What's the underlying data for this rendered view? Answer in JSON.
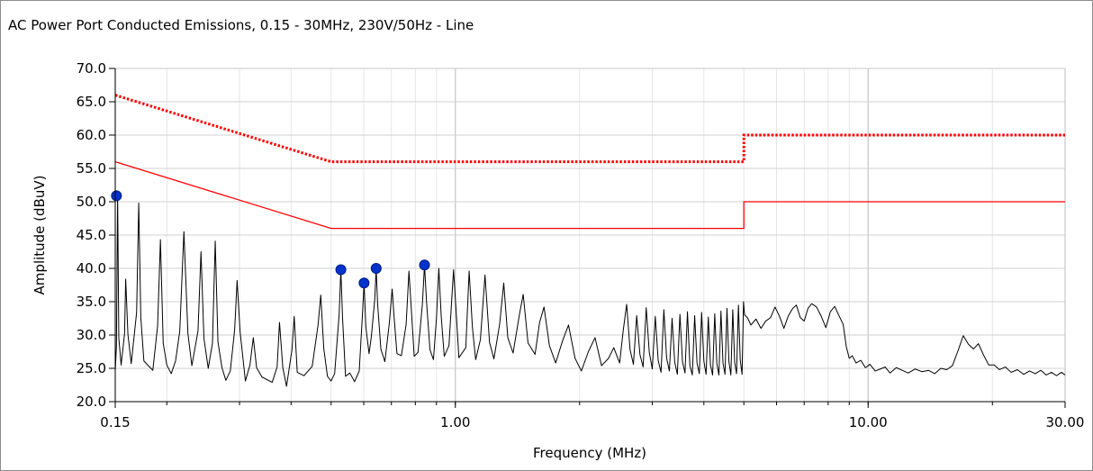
{
  "chart_data": {
    "type": "line",
    "title": "AC Power Port Conducted Emissions, 0.15 - 30MHz, 230V/50Hz - Line",
    "xlabel": "Frequency (MHz)",
    "ylabel": "Amplitude (dBuV)",
    "x_scale": "log",
    "xlim": [
      0.15,
      30
    ],
    "ylim": [
      20,
      70
    ],
    "grid": true,
    "x_tick_values": [
      0.15,
      1,
      10,
      30
    ],
    "x_tick_labels": [
      "0.15",
      "1.00",
      "10.00",
      "30.00"
    ],
    "y_ticks": [
      20,
      25,
      30,
      35,
      40,
      45,
      50,
      55,
      60,
      65,
      70
    ],
    "y_tick_labels": [
      "20.0",
      "25.0",
      "30.0",
      "35.0",
      "40.0",
      "45.0",
      "50.0",
      "55.0",
      "60.0",
      "65.0",
      "70.0"
    ],
    "colors": {
      "limit": "#ff0000",
      "trace": "#000000",
      "marker": "#0033cc",
      "grid": "#d0d0d0"
    },
    "series": [
      {
        "style": "dotted",
        "points": [
          [
            0.15,
            66
          ],
          [
            0.5,
            56
          ],
          [
            5,
            56
          ],
          [
            5,
            60
          ],
          [
            30,
            60
          ]
        ]
      },
      {
        "style": "solid",
        "points": [
          [
            0.15,
            56
          ],
          [
            0.5,
            46
          ],
          [
            5,
            46
          ],
          [
            5,
            50
          ],
          [
            30,
            50
          ]
        ]
      },
      {
        "style": "trace",
        "points": [
          [
            0.15,
            24.6
          ],
          [
            0.151,
            28.3
          ],
          [
            0.152,
            51.2
          ],
          [
            0.153,
            29.6
          ],
          [
            0.155,
            25.5
          ],
          [
            0.158,
            30.2
          ],
          [
            0.159,
            38.4
          ],
          [
            0.161,
            30.1
          ],
          [
            0.164,
            25.7
          ],
          [
            0.169,
            33.4
          ],
          [
            0.171,
            49.8
          ],
          [
            0.173,
            32.6
          ],
          [
            0.176,
            26.1
          ],
          [
            0.185,
            24.7
          ],
          [
            0.19,
            31.4
          ],
          [
            0.193,
            44.3
          ],
          [
            0.196,
            28.8
          ],
          [
            0.2,
            25.5
          ],
          [
            0.205,
            24.2
          ],
          [
            0.21,
            26.1
          ],
          [
            0.215,
            30.6
          ],
          [
            0.22,
            45.5
          ],
          [
            0.225,
            30.2
          ],
          [
            0.23,
            25.4
          ],
          [
            0.238,
            30.6
          ],
          [
            0.242,
            42.5
          ],
          [
            0.246,
            29.5
          ],
          [
            0.252,
            25.0
          ],
          [
            0.258,
            28.8
          ],
          [
            0.262,
            44.1
          ],
          [
            0.266,
            29.0
          ],
          [
            0.272,
            25.1
          ],
          [
            0.278,
            23.2
          ],
          [
            0.285,
            24.6
          ],
          [
            0.292,
            30.8
          ],
          [
            0.296,
            38.2
          ],
          [
            0.301,
            30.5
          ],
          [
            0.31,
            23.1
          ],
          [
            0.318,
            25.5
          ],
          [
            0.324,
            29.6
          ],
          [
            0.33,
            25.1
          ],
          [
            0.34,
            23.7
          ],
          [
            0.36,
            22.9
          ],
          [
            0.37,
            25.2
          ],
          [
            0.375,
            31.9
          ],
          [
            0.382,
            25.1
          ],
          [
            0.39,
            22.3
          ],
          [
            0.402,
            27.8
          ],
          [
            0.407,
            32.8
          ],
          [
            0.414,
            24.4
          ],
          [
            0.43,
            23.9
          ],
          [
            0.45,
            25.3
          ],
          [
            0.465,
            31.5
          ],
          [
            0.472,
            36.0
          ],
          [
            0.48,
            28.0
          ],
          [
            0.49,
            23.8
          ],
          [
            0.5,
            23.1
          ],
          [
            0.51,
            24.2
          ],
          [
            0.523,
            33.1
          ],
          [
            0.528,
            39.8
          ],
          [
            0.533,
            32.6
          ],
          [
            0.542,
            23.8
          ],
          [
            0.555,
            24.3
          ],
          [
            0.57,
            23.0
          ],
          [
            0.585,
            24.6
          ],
          [
            0.596,
            33.4
          ],
          [
            0.601,
            37.8
          ],
          [
            0.607,
            31.2
          ],
          [
            0.618,
            27.2
          ],
          [
            0.626,
            29.8
          ],
          [
            0.638,
            35.4
          ],
          [
            0.643,
            40.0
          ],
          [
            0.648,
            34.8
          ],
          [
            0.66,
            27.9
          ],
          [
            0.675,
            26.0
          ],
          [
            0.692,
            31.8
          ],
          [
            0.703,
            36.9
          ],
          [
            0.71,
            33.0
          ],
          [
            0.722,
            27.2
          ],
          [
            0.74,
            26.9
          ],
          [
            0.76,
            31.6
          ],
          [
            0.772,
            39.6
          ],
          [
            0.782,
            34.0
          ],
          [
            0.795,
            26.8
          ],
          [
            0.812,
            27.4
          ],
          [
            0.832,
            34.6
          ],
          [
            0.842,
            40.5
          ],
          [
            0.852,
            34.8
          ],
          [
            0.868,
            27.8
          ],
          [
            0.885,
            26.3
          ],
          [
            0.9,
            32.5
          ],
          [
            0.912,
            40.0
          ],
          [
            0.924,
            32.9
          ],
          [
            0.94,
            26.8
          ],
          [
            0.965,
            28.4
          ],
          [
            0.99,
            39.8
          ],
          [
            1.005,
            33.3
          ],
          [
            1.02,
            26.6
          ],
          [
            1.06,
            28.1
          ],
          [
            1.08,
            39.6
          ],
          [
            1.1,
            31.1
          ],
          [
            1.12,
            26.3
          ],
          [
            1.15,
            29.3
          ],
          [
            1.18,
            39.0
          ],
          [
            1.21,
            28.9
          ],
          [
            1.24,
            26.4
          ],
          [
            1.28,
            31.6
          ],
          [
            1.31,
            37.8
          ],
          [
            1.34,
            29.6
          ],
          [
            1.38,
            27.3
          ],
          [
            1.43,
            33.1
          ],
          [
            1.46,
            36.1
          ],
          [
            1.5,
            28.8
          ],
          [
            1.56,
            27.1
          ],
          [
            1.6,
            31.9
          ],
          [
            1.64,
            34.2
          ],
          [
            1.69,
            28.4
          ],
          [
            1.75,
            25.8
          ],
          [
            1.82,
            29.2
          ],
          [
            1.88,
            31.5
          ],
          [
            1.95,
            26.5
          ],
          [
            2.02,
            24.6
          ],
          [
            2.1,
            27.5
          ],
          [
            2.18,
            29.6
          ],
          [
            2.26,
            25.4
          ],
          [
            2.35,
            26.5
          ],
          [
            2.42,
            28.1
          ],
          [
            2.5,
            25.8
          ],
          [
            2.55,
            30.6
          ],
          [
            2.6,
            34.6
          ],
          [
            2.65,
            27.8
          ],
          [
            2.7,
            25.6
          ],
          [
            2.75,
            32.9
          ],
          [
            2.8,
            27.1
          ],
          [
            2.85,
            25.2
          ],
          [
            2.9,
            34.1
          ],
          [
            2.95,
            27.4
          ],
          [
            3.0,
            24.9
          ],
          [
            3.05,
            32.8
          ],
          [
            3.1,
            26.2
          ],
          [
            3.15,
            24.4
          ],
          [
            3.2,
            33.8
          ],
          [
            3.25,
            26.5
          ],
          [
            3.3,
            24.6
          ],
          [
            3.35,
            32.5
          ],
          [
            3.4,
            25.9
          ],
          [
            3.45,
            24.1
          ],
          [
            3.5,
            33.1
          ],
          [
            3.55,
            26.0
          ],
          [
            3.6,
            24.3
          ],
          [
            3.65,
            33.5
          ],
          [
            3.7,
            25.4
          ],
          [
            3.75,
            24.0
          ],
          [
            3.8,
            32.9
          ],
          [
            3.85,
            25.8
          ],
          [
            3.9,
            24.2
          ],
          [
            3.95,
            33.4
          ],
          [
            4.0,
            26.1
          ],
          [
            4.05,
            24.1
          ],
          [
            4.1,
            32.7
          ],
          [
            4.15,
            25.5
          ],
          [
            4.2,
            24.0
          ],
          [
            4.25,
            33.2
          ],
          [
            4.3,
            25.7
          ],
          [
            4.35,
            24.0
          ],
          [
            4.4,
            33.6
          ],
          [
            4.45,
            25.8
          ],
          [
            4.5,
            24.1
          ],
          [
            4.55,
            34.0
          ],
          [
            4.6,
            26.0
          ],
          [
            4.65,
            24.0
          ],
          [
            4.7,
            33.8
          ],
          [
            4.75,
            25.9
          ],
          [
            4.8,
            24.2
          ],
          [
            4.85,
            34.5
          ],
          [
            4.9,
            26.2
          ],
          [
            4.95,
            24.1
          ],
          [
            4.99,
            35.0
          ],
          [
            5.02,
            33.0
          ],
          [
            5.1,
            32.6
          ],
          [
            5.2,
            31.5
          ],
          [
            5.35,
            32.4
          ],
          [
            5.5,
            31.0
          ],
          [
            5.65,
            32.1
          ],
          [
            5.8,
            32.6
          ],
          [
            5.95,
            34.2
          ],
          [
            6.1,
            32.8
          ],
          [
            6.25,
            31.0
          ],
          [
            6.4,
            32.8
          ],
          [
            6.55,
            33.9
          ],
          [
            6.7,
            34.5
          ],
          [
            6.85,
            32.6
          ],
          [
            7.0,
            32.1
          ],
          [
            7.15,
            34.0
          ],
          [
            7.3,
            34.7
          ],
          [
            7.5,
            34.2
          ],
          [
            7.7,
            32.8
          ],
          [
            7.9,
            31.1
          ],
          [
            8.1,
            33.5
          ],
          [
            8.3,
            34.3
          ],
          [
            8.5,
            32.9
          ],
          [
            8.7,
            31.6
          ],
          [
            8.85,
            28.3
          ],
          [
            9.0,
            26.5
          ],
          [
            9.15,
            26.9
          ],
          [
            9.35,
            25.8
          ],
          [
            9.6,
            26.2
          ],
          [
            9.85,
            25.1
          ],
          [
            10.1,
            25.6
          ],
          [
            10.4,
            24.6
          ],
          [
            10.7,
            24.9
          ],
          [
            11.0,
            25.2
          ],
          [
            11.3,
            24.3
          ],
          [
            11.7,
            25.1
          ],
          [
            12.1,
            24.7
          ],
          [
            12.5,
            24.3
          ],
          [
            13.0,
            24.9
          ],
          [
            13.5,
            24.5
          ],
          [
            14.0,
            24.7
          ],
          [
            14.5,
            24.2
          ],
          [
            15.0,
            25.0
          ],
          [
            15.5,
            24.8
          ],
          [
            16.0,
            25.4
          ],
          [
            16.5,
            27.6
          ],
          [
            17.0,
            29.9
          ],
          [
            17.5,
            28.6
          ],
          [
            18.0,
            27.9
          ],
          [
            18.5,
            28.7
          ],
          [
            19.0,
            27.1
          ],
          [
            19.6,
            25.5
          ],
          [
            20.2,
            25.5
          ],
          [
            20.8,
            24.8
          ],
          [
            21.5,
            25.2
          ],
          [
            22.2,
            24.4
          ],
          [
            23.0,
            24.8
          ],
          [
            23.8,
            24.1
          ],
          [
            24.6,
            24.6
          ],
          [
            25.4,
            24.2
          ],
          [
            26.2,
            24.7
          ],
          [
            27.0,
            24.0
          ],
          [
            27.8,
            24.4
          ],
          [
            28.6,
            23.9
          ],
          [
            29.4,
            24.4
          ],
          [
            30.0,
            24.0
          ]
        ]
      }
    ],
    "markers": [
      [
        0.151,
        50.9
      ],
      [
        0.528,
        39.8
      ],
      [
        0.601,
        37.8
      ],
      [
        0.643,
        40.0
      ],
      [
        0.842,
        40.5
      ]
    ]
  }
}
